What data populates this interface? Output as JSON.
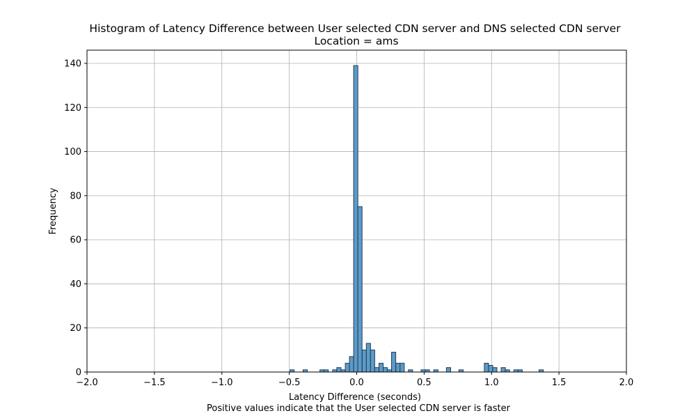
{
  "chart_data": {
    "type": "bar",
    "title": "Histogram of Latency Difference between User selected CDN server and DNS selected CDN server",
    "subtitle": "Location = ams",
    "xlabel": "Latency Difference (seconds)",
    "xlabel_note": "Positive values indicate that the User selected CDN server is faster",
    "ylabel": "Frequency",
    "xlim": [
      -2.0,
      2.0
    ],
    "ylim": [
      0,
      146
    ],
    "xticks": [
      "−2.0",
      "−1.5",
      "−1.0",
      "−0.5",
      "0.0",
      "0.5",
      "1.0",
      "1.5",
      "2.0"
    ],
    "xtick_values": [
      -2.0,
      -1.5,
      -1.0,
      -0.5,
      0.0,
      0.5,
      1.0,
      1.5,
      2.0
    ],
    "yticks": [
      "0",
      "20",
      "40",
      "60",
      "80",
      "100",
      "120",
      "140"
    ],
    "ytick_values": [
      0,
      20,
      40,
      60,
      80,
      100,
      120,
      140
    ],
    "grid": true,
    "bar_color": "#5d9bc7",
    "bar_edge_color": "#1f3b57",
    "bin_width": 0.0313,
    "bins": [
      {
        "x": -0.479,
        "count": 1
      },
      {
        "x": -0.382,
        "count": 1
      },
      {
        "x": -0.257,
        "count": 1
      },
      {
        "x": -0.226,
        "count": 1
      },
      {
        "x": -0.163,
        "count": 1
      },
      {
        "x": -0.132,
        "count": 2
      },
      {
        "x": -0.101,
        "count": 1
      },
      {
        "x": -0.069,
        "count": 4
      },
      {
        "x": -0.038,
        "count": 7
      },
      {
        "x": -0.007,
        "count": 139
      },
      {
        "x": 0.024,
        "count": 75
      },
      {
        "x": 0.056,
        "count": 10
      },
      {
        "x": 0.087,
        "count": 13
      },
      {
        "x": 0.118,
        "count": 10
      },
      {
        "x": 0.149,
        "count": 2
      },
      {
        "x": 0.181,
        "count": 4
      },
      {
        "x": 0.212,
        "count": 2
      },
      {
        "x": 0.243,
        "count": 1
      },
      {
        "x": 0.274,
        "count": 9
      },
      {
        "x": 0.306,
        "count": 4
      },
      {
        "x": 0.337,
        "count": 4
      },
      {
        "x": 0.399,
        "count": 1
      },
      {
        "x": 0.493,
        "count": 1
      },
      {
        "x": 0.524,
        "count": 1
      },
      {
        "x": 0.587,
        "count": 1
      },
      {
        "x": 0.681,
        "count": 2
      },
      {
        "x": 0.774,
        "count": 1
      },
      {
        "x": 0.962,
        "count": 4
      },
      {
        "x": 0.993,
        "count": 3
      },
      {
        "x": 1.024,
        "count": 2
      },
      {
        "x": 1.087,
        "count": 2
      },
      {
        "x": 1.118,
        "count": 1
      },
      {
        "x": 1.181,
        "count": 1
      },
      {
        "x": 1.212,
        "count": 1
      },
      {
        "x": 1.368,
        "count": 1
      }
    ]
  }
}
